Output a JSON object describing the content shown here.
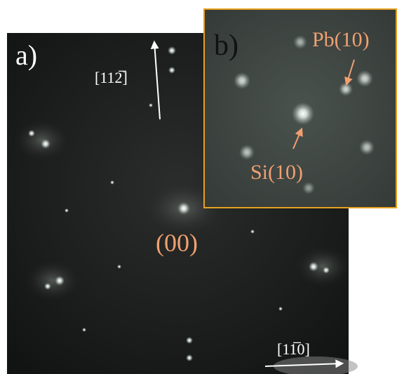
{
  "panel_a": {
    "label": "a)",
    "direction_up": "[112̅]",
    "direction_right": "[11̅0]",
    "spot_label": "(00)"
  },
  "panel_b": {
    "label": "b)",
    "pb_label": "Pb(10)",
    "si_label": "Si(10)"
  }
}
